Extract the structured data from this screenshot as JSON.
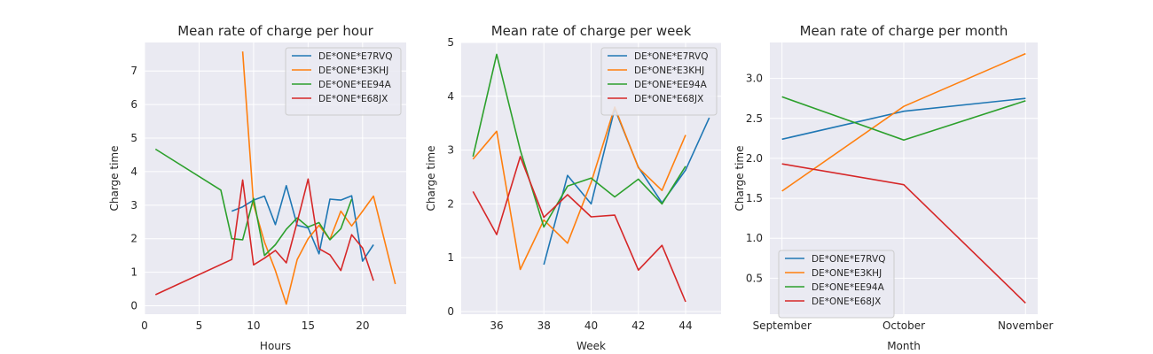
{
  "series_colors": [
    "#1f77b4",
    "#ff7f0e",
    "#2ca02c",
    "#d62728"
  ],
  "chart_data": [
    {
      "type": "line",
      "title": "Mean rate of charge per hour",
      "xlabel": "Hours",
      "ylabel": "Charge time",
      "xlim": [
        0,
        24
      ],
      "ylim": [
        -0.25,
        7.85
      ],
      "xticks": [
        0,
        5,
        10,
        15,
        20
      ],
      "yticks": [
        0,
        1,
        2,
        3,
        4,
        5,
        6,
        7
      ],
      "grid": true,
      "legend": "top-right",
      "series": [
        {
          "name": "DE*ONE*E7RVQ",
          "x": [
            8,
            9,
            10,
            11,
            12,
            13,
            14,
            15,
            16,
            17,
            18,
            19,
            20,
            21
          ],
          "y": [
            2.82,
            2.95,
            3.15,
            3.27,
            2.42,
            3.58,
            2.4,
            2.32,
            1.55,
            3.18,
            3.15,
            3.28,
            1.33,
            1.82
          ]
        },
        {
          "name": "DE*ONE*E3KHJ",
          "x": [
            9,
            10,
            11,
            12,
            13,
            14,
            15,
            16,
            17,
            18,
            19,
            20,
            21,
            23
          ],
          "y": [
            7.58,
            3.02,
            1.9,
            1.05,
            0.05,
            1.38,
            2.0,
            2.4,
            1.98,
            2.82,
            2.38,
            2.82,
            3.27,
            0.65
          ]
        },
        {
          "name": "DE*ONE*EE94A",
          "x": [
            1,
            7,
            8,
            9,
            10,
            11,
            12,
            13,
            14,
            15,
            16,
            17,
            18,
            19
          ],
          "y": [
            4.67,
            3.45,
            2.0,
            1.97,
            3.2,
            1.5,
            1.82,
            2.28,
            2.62,
            2.35,
            2.48,
            1.97,
            2.3,
            3.18
          ]
        },
        {
          "name": "DE*ONE*E68JX",
          "x": [
            1,
            8,
            9,
            10,
            11,
            12,
            13,
            14,
            15,
            16,
            17,
            18,
            19,
            20,
            21
          ],
          "y": [
            0.33,
            1.38,
            3.75,
            1.22,
            1.42,
            1.65,
            1.28,
            2.5,
            3.78,
            1.7,
            1.52,
            1.05,
            2.12,
            1.72,
            0.75
          ]
        }
      ]
    },
    {
      "type": "line",
      "title": "Mean rate of charge per week",
      "xlabel": "Week",
      "ylabel": "Charge time",
      "xlim": [
        34.5,
        45.5
      ],
      "ylim": [
        -0.05,
        5.0
      ],
      "xticks": [
        36,
        38,
        40,
        42,
        44
      ],
      "yticks": [
        0,
        1,
        2,
        3,
        4,
        5
      ],
      "grid": true,
      "legend": "top-right",
      "series": [
        {
          "name": "DE*ONE*E7RVQ",
          "x": [
            38,
            39,
            40,
            41,
            42,
            43,
            44,
            45
          ],
          "y": [
            0.87,
            2.53,
            2.0,
            3.77,
            2.68,
            2.02,
            2.63,
            3.6
          ]
        },
        {
          "name": "DE*ONE*E3KHJ",
          "x": [
            35,
            36,
            37,
            38,
            39,
            40,
            41,
            42,
            43,
            44
          ],
          "y": [
            2.83,
            3.35,
            0.78,
            1.7,
            1.27,
            2.4,
            3.8,
            2.67,
            2.25,
            3.28
          ]
        },
        {
          "name": "DE*ONE*EE94A",
          "x": [
            35,
            36,
            37,
            38,
            39,
            40,
            41,
            42,
            43,
            44
          ],
          "y": [
            2.88,
            4.78,
            3.0,
            1.57,
            2.33,
            2.48,
            2.13,
            2.46,
            2.0,
            2.7
          ]
        },
        {
          "name": "DE*ONE*E68JX",
          "x": [
            35,
            36,
            37,
            38,
            39,
            40,
            41,
            42,
            43,
            44
          ],
          "y": [
            2.23,
            1.43,
            2.88,
            1.75,
            2.17,
            1.76,
            1.79,
            0.77,
            1.23,
            0.18
          ]
        }
      ]
    },
    {
      "type": "line",
      "title": "Mean rate of charge per month",
      "xlabel": "Month",
      "ylabel": "Charge time",
      "categories": [
        "September",
        "October",
        "November"
      ],
      "xlim": [
        -0.1,
        2.1
      ],
      "ylim": [
        0.05,
        3.45
      ],
      "yticks": [
        0.5,
        1.0,
        1.5,
        2.0,
        2.5,
        3.0
      ],
      "ytick_labels": [
        "0.5",
        "1.0",
        "1.5",
        "2.0",
        "2.5",
        "3.0"
      ],
      "grid": true,
      "legend": "bottom-left",
      "series": [
        {
          "name": "DE*ONE*E7RVQ",
          "values": [
            2.24,
            2.59,
            2.75
          ]
        },
        {
          "name": "DE*ONE*E3KHJ",
          "values": [
            1.59,
            2.65,
            3.31
          ]
        },
        {
          "name": "DE*ONE*EE94A",
          "values": [
            2.77,
            2.23,
            2.72
          ]
        },
        {
          "name": "DE*ONE*E68JX",
          "values": [
            1.93,
            1.67,
            0.19
          ]
        }
      ]
    }
  ]
}
